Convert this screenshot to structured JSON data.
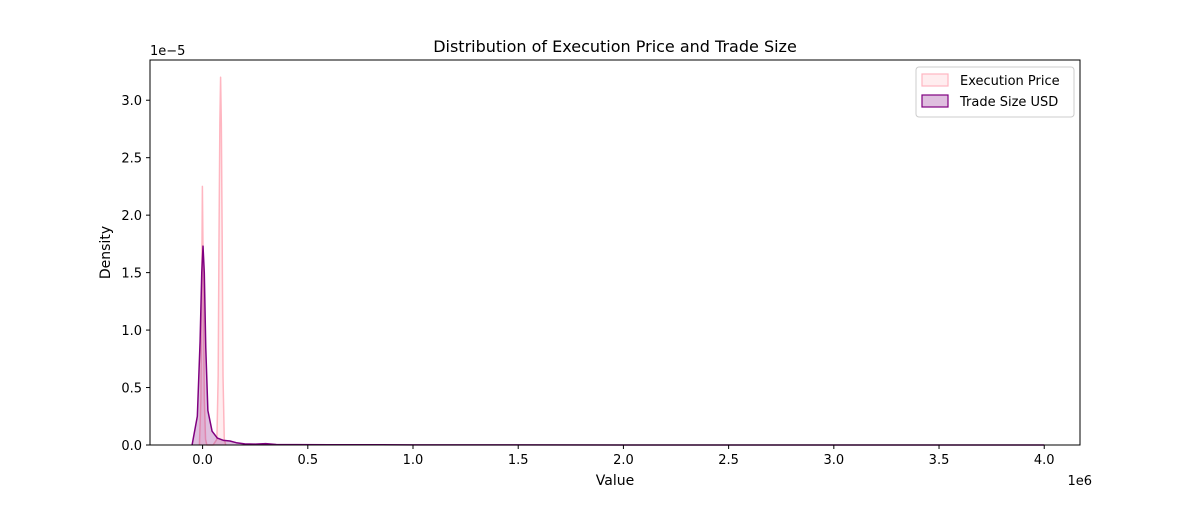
{
  "chart_data": {
    "type": "area",
    "title": "Distribution of Execution Price and Trade Size",
    "xlabel": "Value",
    "ylabel": "Density",
    "x_offset_text": "1e6",
    "y_offset_text": "1e−5",
    "x_scale_multiplier": 1000000,
    "y_scale_multiplier": 1e-05,
    "xlim": [
      -0.25,
      4.17
    ],
    "ylim": [
      0,
      3.35
    ],
    "x_ticks": [
      0.0,
      0.5,
      1.0,
      1.5,
      2.0,
      2.5,
      3.0,
      3.5,
      4.0
    ],
    "x_tick_labels": [
      "0.0",
      "0.5",
      "1.0",
      "1.5",
      "2.0",
      "2.5",
      "3.0",
      "3.5",
      "4.0"
    ],
    "y_ticks": [
      0.0,
      0.5,
      1.0,
      1.5,
      2.0,
      2.5,
      3.0
    ],
    "y_tick_labels": [
      "0.0",
      "0.5",
      "1.0",
      "1.5",
      "2.0",
      "2.5",
      "3.0"
    ],
    "grid": false,
    "legend_position": "top-right",
    "series": [
      {
        "name": "Execution Price",
        "color": "#ffb6c1",
        "fill_opacity": 0.25,
        "points": [
          [
            -0.015,
            0.0
          ],
          [
            -0.008,
            0.4
          ],
          [
            -0.004,
            1.4
          ],
          [
            -0.001,
            2.25
          ],
          [
            0.003,
            1.5
          ],
          [
            0.008,
            0.4
          ],
          [
            0.014,
            0.05
          ],
          [
            0.02,
            0.0
          ],
          [
            0.05,
            0.0
          ],
          [
            0.068,
            0.05
          ],
          [
            0.074,
            0.6
          ],
          [
            0.078,
            1.8
          ],
          [
            0.082,
            2.8
          ],
          [
            0.0855,
            3.2
          ],
          [
            0.089,
            2.8
          ],
          [
            0.093,
            1.8
          ],
          [
            0.097,
            0.6
          ],
          [
            0.103,
            0.05
          ],
          [
            0.11,
            0.0
          ]
        ]
      },
      {
        "name": "Trade Size USD",
        "color": "#800080",
        "fill_opacity": 0.25,
        "points": [
          [
            -0.05,
            0.0
          ],
          [
            -0.025,
            0.25
          ],
          [
            -0.012,
            0.9
          ],
          [
            -0.004,
            1.5
          ],
          [
            0.002,
            1.73
          ],
          [
            0.008,
            1.5
          ],
          [
            0.015,
            0.85
          ],
          [
            0.025,
            0.3
          ],
          [
            0.045,
            0.12
          ],
          [
            0.07,
            0.06
          ],
          [
            0.1,
            0.04
          ],
          [
            0.13,
            0.035
          ],
          [
            0.16,
            0.02
          ],
          [
            0.2,
            0.01
          ],
          [
            0.25,
            0.008
          ],
          [
            0.3,
            0.012
          ],
          [
            0.35,
            0.004
          ],
          [
            0.45,
            0.003
          ],
          [
            0.6,
            0.002
          ],
          [
            0.8,
            0.002
          ],
          [
            1.0,
            0.001
          ],
          [
            1.5,
            0.001
          ],
          [
            2.0,
            0.0005
          ],
          [
            2.5,
            0.0005
          ],
          [
            3.0,
            0.0004
          ],
          [
            3.5,
            0.0003
          ],
          [
            4.0,
            0.0
          ]
        ]
      }
    ]
  }
}
